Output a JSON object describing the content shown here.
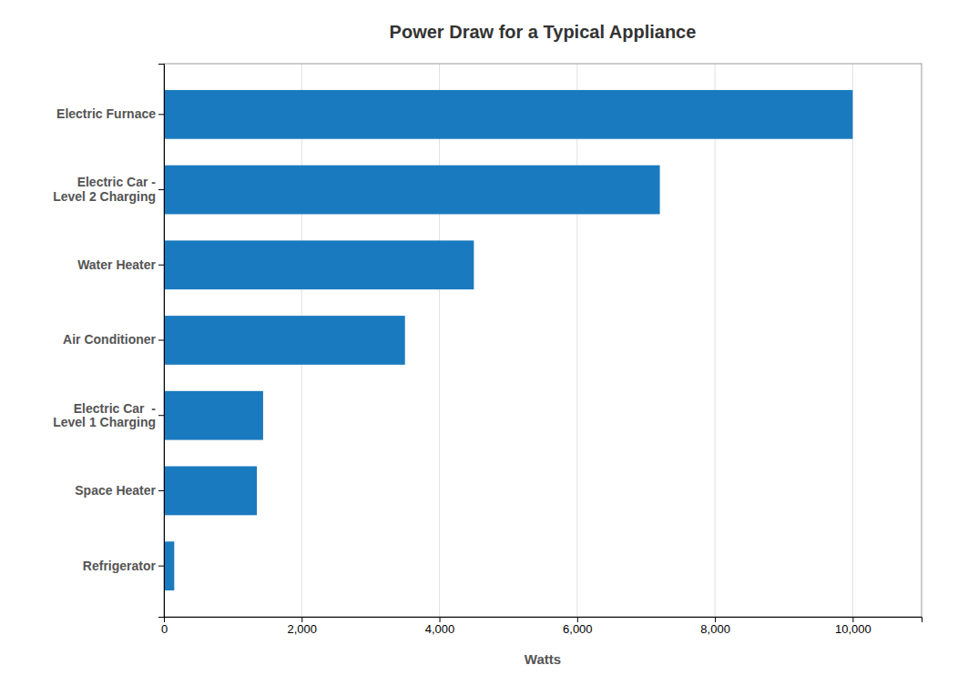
{
  "chart_data": {
    "type": "bar",
    "orientation": "horizontal",
    "title": "Power Draw for a Typical Appliance",
    "xlabel": "Watts",
    "categories": [
      "Electric Furnace",
      "Electric Car -\nLevel 2 Charging",
      "Water Heater",
      "Air Conditioner",
      "Electric Car  -\nLevel 1 Charging",
      "Space Heater",
      "Refrigerator"
    ],
    "values": [
      10000,
      7200,
      4500,
      3500,
      1440,
      1350,
      150
    ],
    "color": "#1a7abf",
    "xlim": [
      0,
      11000
    ],
    "xticks": [
      0,
      {
        "value": 2000,
        "label": "2,000"
      },
      {
        "value": 4000,
        "label": "4,000"
      },
      {
        "value": 6000,
        "label": "6,000"
      },
      {
        "value": 8000,
        "label": "8,000"
      },
      {
        "value": 10000,
        "label": "10,000"
      }
    ],
    "grid": true
  }
}
